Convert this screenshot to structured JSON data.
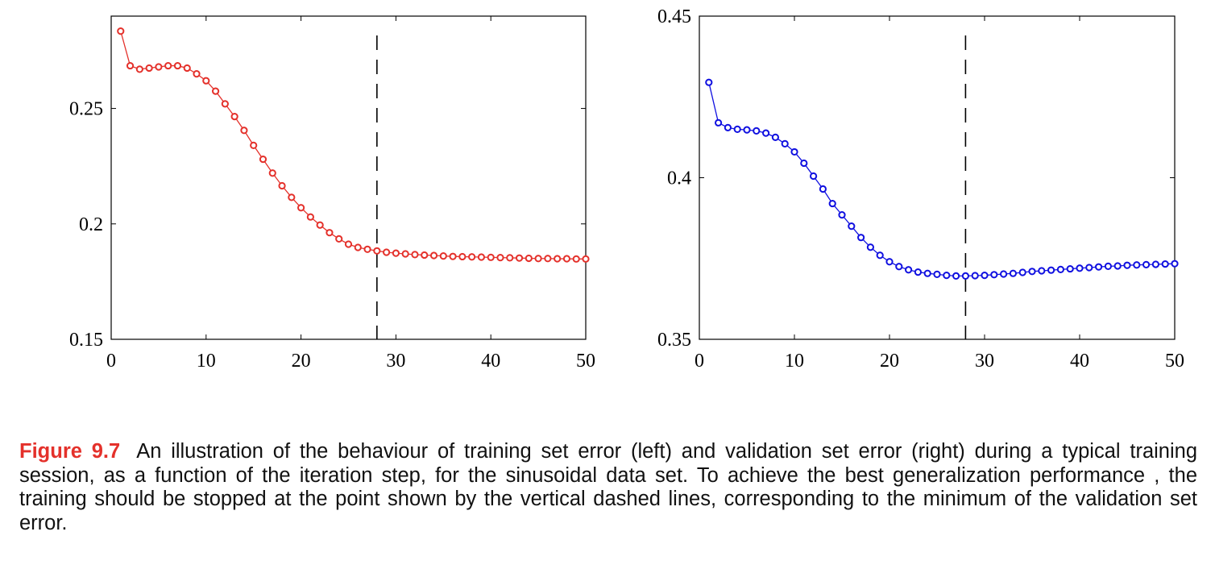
{
  "figure": {
    "label": "Figure 9.7",
    "caption": "An illustration of the behaviour of training set error (left) and validation set error (right) during a typical training session, as a function of the iteration step, for the sinusoidal data set.  To achieve the best generalization performance , the training should be stopped at the point shown by the vertical dashed lines, corresponding to the minimum of the validation set error."
  },
  "chart_data": [
    {
      "type": "line",
      "title": "",
      "xlabel": "",
      "ylabel": "",
      "xlim": [
        0,
        50
      ],
      "ylim": [
        0.15,
        0.29
      ],
      "xticks": [
        0,
        10,
        20,
        30,
        40,
        50
      ],
      "yticks": [
        0.15,
        0.2,
        0.25
      ],
      "ytick_labels": [
        "0.15",
        "0.2",
        "0.25"
      ],
      "grid": false,
      "color": "#e4312b",
      "marker": "circle",
      "vline": {
        "x": 28,
        "style": "dashed"
      },
      "series": [
        {
          "x": [
            1,
            2,
            3,
            4,
            5,
            6,
            7,
            8,
            9,
            10,
            11,
            12,
            13,
            14,
            15,
            16,
            17,
            18,
            19,
            20,
            21,
            22,
            23,
            24,
            25,
            26,
            27,
            28,
            29,
            30,
            31,
            32,
            33,
            34,
            35,
            36,
            37,
            38,
            39,
            40,
            41,
            42,
            43,
            44,
            45,
            46,
            47,
            48,
            49,
            50
          ],
          "values": [
            0.2835,
            0.2685,
            0.267,
            0.2675,
            0.268,
            0.2685,
            0.2685,
            0.2675,
            0.265,
            0.262,
            0.2575,
            0.252,
            0.2465,
            0.2405,
            0.234,
            0.228,
            0.222,
            0.2165,
            0.2115,
            0.207,
            0.203,
            0.1995,
            0.1962,
            0.1935,
            0.1912,
            0.1898,
            0.189,
            0.1883,
            0.1877,
            0.1873,
            0.187,
            0.1867,
            0.1865,
            0.1863,
            0.1861,
            0.1859,
            0.1858,
            0.1857,
            0.1856,
            0.1855,
            0.1854,
            0.1853,
            0.1852,
            0.1851,
            0.185,
            0.185,
            0.1849,
            0.1849,
            0.1848,
            0.1848
          ]
        }
      ]
    },
    {
      "type": "line",
      "title": "",
      "xlabel": "",
      "ylabel": "",
      "xlim": [
        0,
        50
      ],
      "ylim": [
        0.35,
        0.45
      ],
      "xticks": [
        0,
        10,
        20,
        30,
        40,
        50
      ],
      "yticks": [
        0.35,
        0.4,
        0.45
      ],
      "ytick_labels": [
        "0.35",
        "0.4",
        "0.45"
      ],
      "grid": false,
      "color": "#1010e0",
      "marker": "circle",
      "vline": {
        "x": 28,
        "style": "dashed"
      },
      "series": [
        {
          "x": [
            1,
            2,
            3,
            4,
            5,
            6,
            7,
            8,
            9,
            10,
            11,
            12,
            13,
            14,
            15,
            16,
            17,
            18,
            19,
            20,
            21,
            22,
            23,
            24,
            25,
            26,
            27,
            28,
            29,
            30,
            31,
            32,
            33,
            34,
            35,
            36,
            37,
            38,
            39,
            40,
            41,
            42,
            43,
            44,
            45,
            46,
            47,
            48,
            49,
            50
          ],
          "values": [
            0.4295,
            0.417,
            0.4155,
            0.415,
            0.4148,
            0.4145,
            0.4138,
            0.4125,
            0.4105,
            0.408,
            0.4045,
            0.4005,
            0.3965,
            0.392,
            0.3885,
            0.385,
            0.3815,
            0.3785,
            0.376,
            0.374,
            0.3725,
            0.3715,
            0.3708,
            0.3704,
            0.3701,
            0.3698,
            0.3696,
            0.3696,
            0.3697,
            0.3698,
            0.37,
            0.3702,
            0.3704,
            0.3707,
            0.371,
            0.3712,
            0.3714,
            0.3716,
            0.3718,
            0.372,
            0.3722,
            0.3724,
            0.3726,
            0.3727,
            0.3729,
            0.373,
            0.3731,
            0.3732,
            0.3733,
            0.3734
          ]
        }
      ]
    }
  ]
}
